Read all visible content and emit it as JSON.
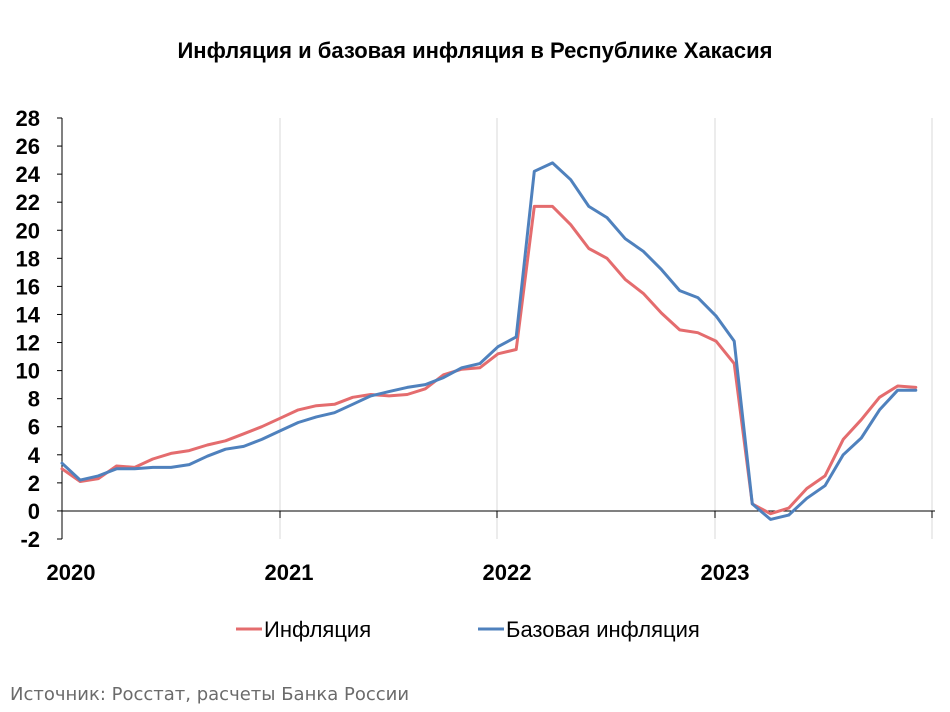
{
  "title": "Инфляция и базовая инфляция в Республике Хакасия",
  "source": "Источник: Росстат, расчеты Банка России",
  "colors": {
    "inflation": "#E46C6E",
    "core": "#4F81BD",
    "grid": "#D9D9D9",
    "axis": "#000000"
  },
  "chart_data": {
    "type": "line",
    "title": "Инфляция и базовая инфляция в Республике Хакасия",
    "xlabel": "",
    "ylabel": "",
    "ylim": [
      -2,
      28
    ],
    "yticks": [
      -2,
      0,
      2,
      4,
      6,
      8,
      10,
      12,
      14,
      16,
      18,
      20,
      22,
      24,
      26,
      28
    ],
    "xticks": [
      "2020",
      "2021",
      "2022",
      "2023"
    ],
    "grid": "vertical at year boundaries",
    "legend": "bottom",
    "x": [
      "2020-01",
      "2020-02",
      "2020-03",
      "2020-04",
      "2020-05",
      "2020-06",
      "2020-07",
      "2020-08",
      "2020-09",
      "2020-10",
      "2020-11",
      "2020-12",
      "2021-01",
      "2021-02",
      "2021-03",
      "2021-04",
      "2021-05",
      "2021-06",
      "2021-07",
      "2021-08",
      "2021-09",
      "2021-10",
      "2021-11",
      "2021-12",
      "2022-01",
      "2022-02",
      "2022-03",
      "2022-04",
      "2022-05",
      "2022-06",
      "2022-07",
      "2022-08",
      "2022-09",
      "2022-10",
      "2022-11",
      "2022-12",
      "2023-01",
      "2023-02",
      "2023-03",
      "2023-04",
      "2023-05",
      "2023-06",
      "2023-07",
      "2023-08",
      "2023-09",
      "2023-10",
      "2023-11",
      "2023-12"
    ],
    "series": [
      {
        "name": "Инфляция",
        "values": [
          3.0,
          2.1,
          2.3,
          3.2,
          3.1,
          3.7,
          4.1,
          4.3,
          4.7,
          5.0,
          5.5,
          6.0,
          6.6,
          7.2,
          7.5,
          7.6,
          8.1,
          8.3,
          8.2,
          8.3,
          8.7,
          9.7,
          10.1,
          10.2,
          11.2,
          11.5,
          21.7,
          21.7,
          20.4,
          18.7,
          18.0,
          16.5,
          15.5,
          14.1,
          12.9,
          12.7,
          12.1,
          10.5,
          0.5,
          -0.2,
          0.2,
          1.6,
          2.5,
          5.1,
          6.5,
          8.1,
          8.9,
          8.8
        ]
      },
      {
        "name": "Базовая инфляция",
        "values": [
          3.4,
          2.2,
          2.5,
          3.0,
          3.0,
          3.1,
          3.1,
          3.3,
          3.9,
          4.4,
          4.6,
          5.1,
          5.7,
          6.3,
          6.7,
          7.0,
          7.6,
          8.2,
          8.5,
          8.8,
          9.0,
          9.5,
          10.2,
          10.5,
          11.7,
          12.4,
          24.2,
          24.8,
          23.6,
          21.7,
          20.9,
          19.4,
          18.5,
          17.2,
          15.7,
          15.2,
          13.9,
          12.1,
          0.5,
          -0.6,
          -0.3,
          0.9,
          1.8,
          4.0,
          5.2,
          7.2,
          8.6,
          8.6
        ]
      }
    ]
  }
}
